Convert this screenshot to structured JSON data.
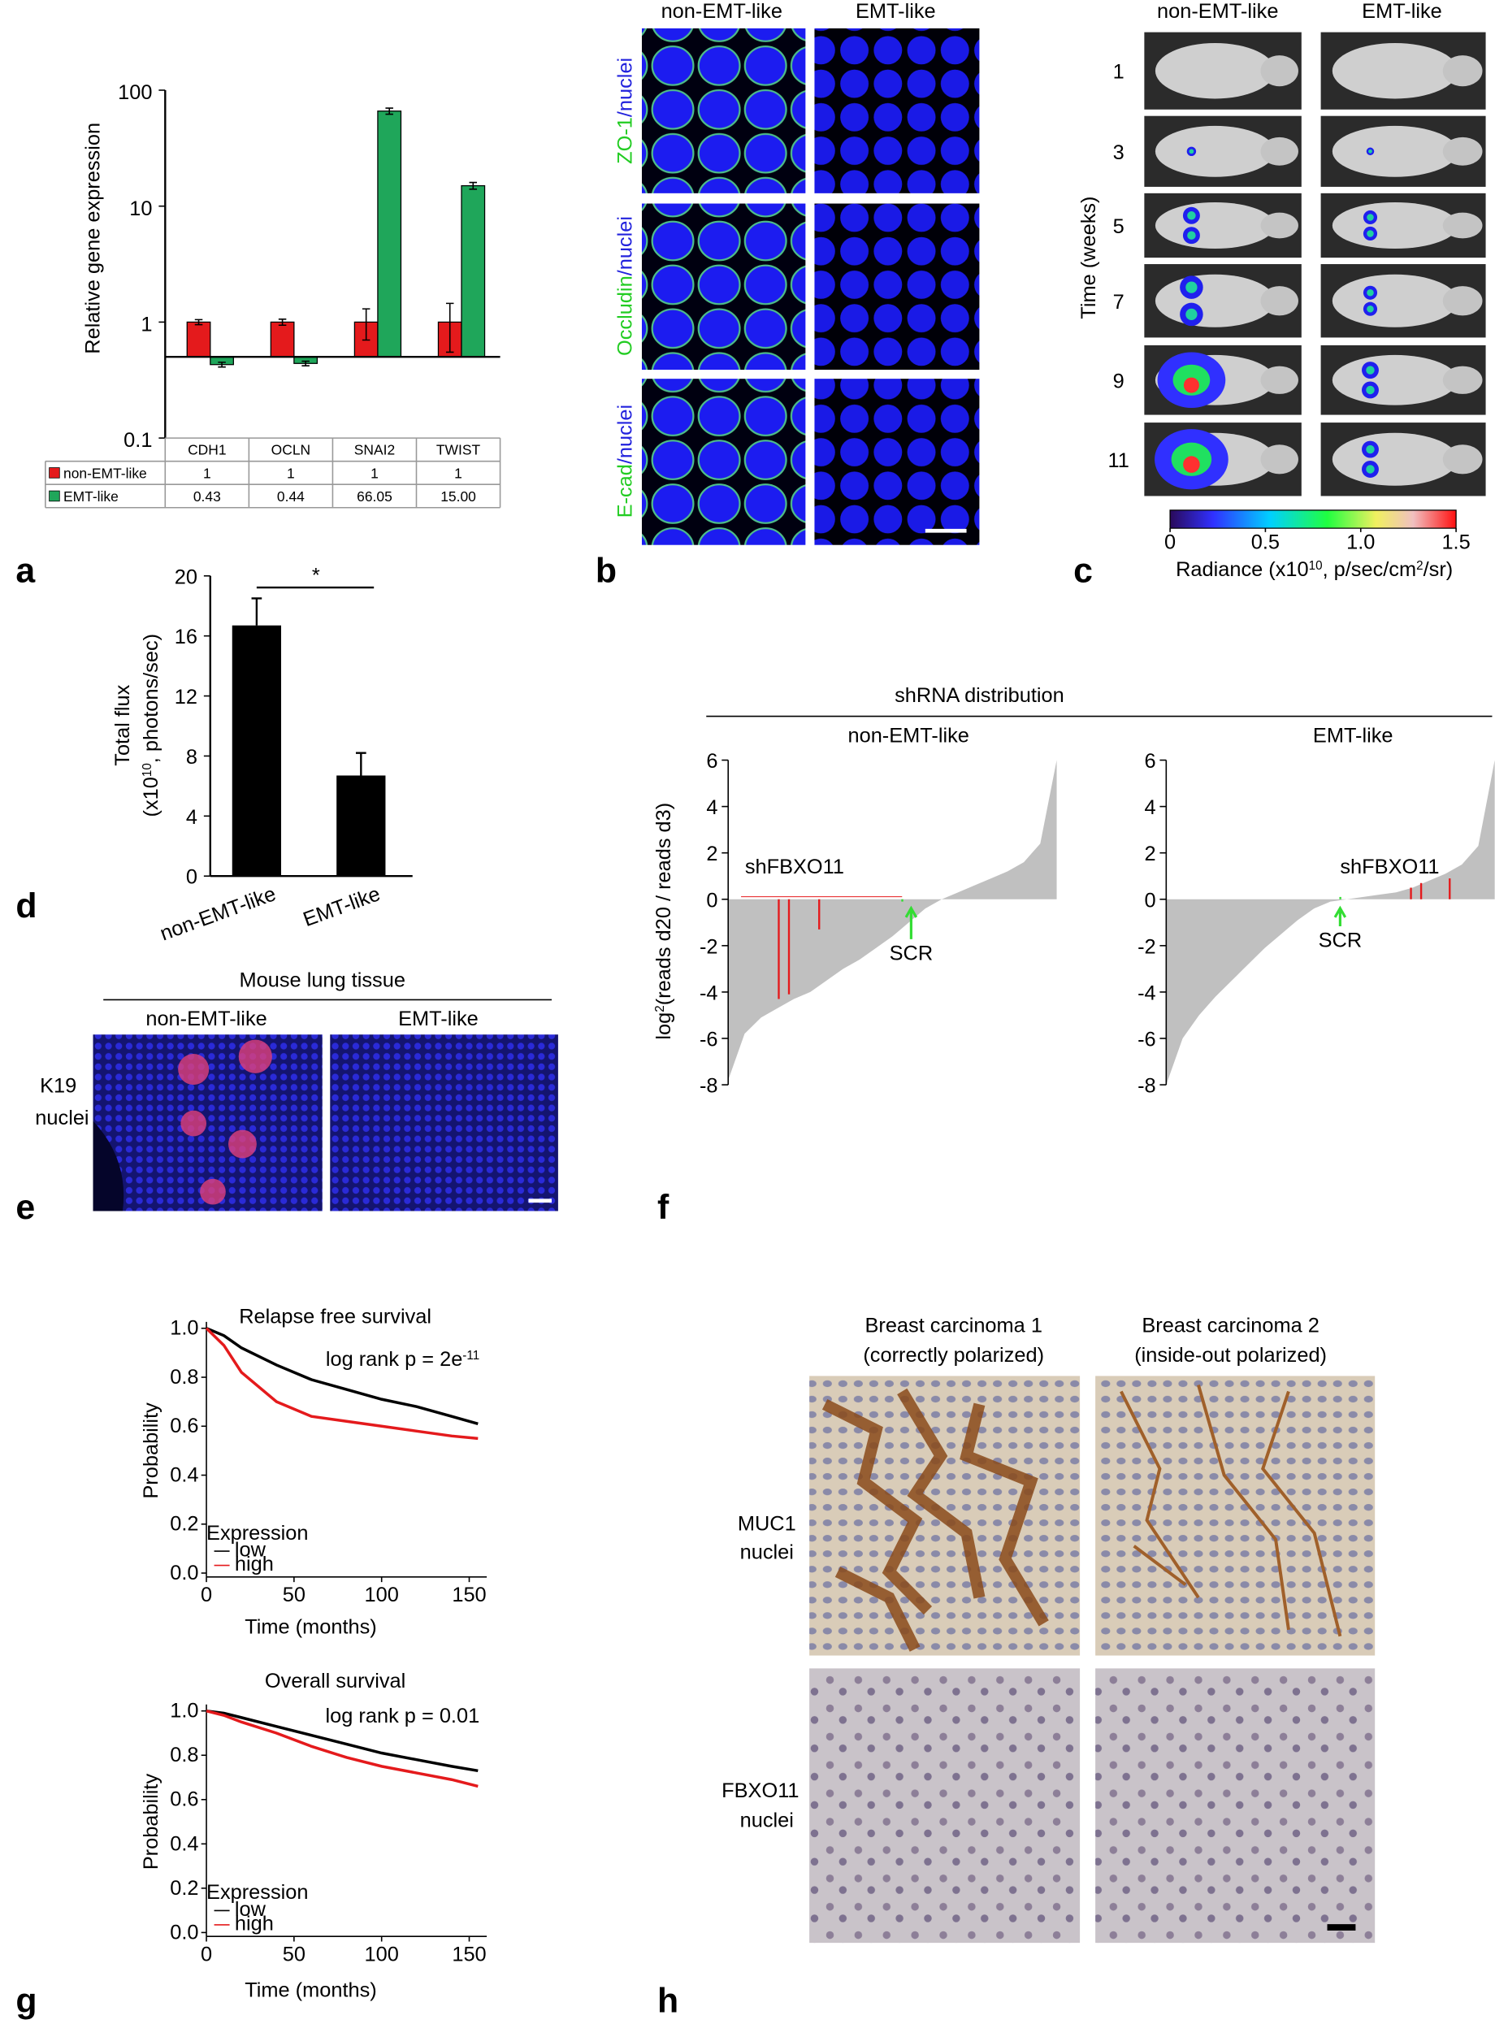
{
  "panel_letters": [
    "a",
    "b",
    "c",
    "d",
    "e",
    "f",
    "g",
    "h"
  ],
  "panel_b": {
    "columns": [
      "non-EMT-like",
      "EMT-like"
    ],
    "rows": [
      [
        "ZO-1",
        "/",
        "nuclei"
      ],
      [
        "Occludin",
        "/",
        "nuclei"
      ],
      [
        "E-cad",
        "/",
        "nuclei"
      ]
    ]
  },
  "panel_c": {
    "columns": [
      "non-EMT-like",
      "EMT-like"
    ],
    "weeks": [
      "1",
      "3",
      "5",
      "7",
      "9",
      "11"
    ],
    "axis_label": "Time (weeks)"
  },
  "panel_e": {
    "title": "Mouse lung tissue",
    "columns": [
      "non-EMT-like",
      "EMT-like"
    ],
    "stain": [
      "K19",
      "nuclei"
    ]
  },
  "panel_h": {
    "columns": [
      [
        "Breast carcinoma 1",
        "(correctly polarized)"
      ],
      [
        "Breast carcinoma 2",
        "(inside-out polarized)"
      ]
    ],
    "rows": [
      [
        "MUC1",
        "nuclei"
      ],
      [
        "FBXO11",
        "nuclei"
      ]
    ]
  },
  "chart_data": [
    {
      "type": "bar",
      "ylabel": "Relative gene expression",
      "log_scale": true,
      "ylim": [
        0.1,
        100
      ],
      "yticks": [
        0.1,
        1,
        10,
        100
      ],
      "categories": [
        "CDH1",
        "OCLN",
        "SNAI2",
        "TWIST"
      ],
      "series": [
        {
          "name": "non-EMT-like",
          "color": "#e41a1c",
          "values": [
            1,
            1,
            1,
            1
          ],
          "value_labels": [
            "1",
            "1",
            "1",
            "1"
          ],
          "errors": [
            0.05,
            0.06,
            0.3,
            0.45
          ]
        },
        {
          "name": "EMT-like",
          "color": "#1fa65a",
          "values": [
            0.43,
            0.44,
            66.05,
            15.0
          ],
          "value_labels": [
            "0.43",
            "0.44",
            "66.05",
            "15.00"
          ],
          "errors": [
            0.02,
            0.02,
            4,
            1
          ]
        }
      ]
    },
    {
      "type": "colorbar",
      "xlim": [
        0,
        1.5
      ],
      "xticks": [
        0,
        0.5,
        {
          "value": 1,
          "label": "1.0"
        },
        1.5
      ],
      "label": [
        "Radiance (x10",
        "10",
        ", p/sec/cm",
        "2",
        "/sr)"
      ]
    },
    {
      "type": "bar",
      "ylabel": {
        "line1": "Total flux",
        "line2": [
          "(x10",
          "10",
          ", photons/sec)"
        ]
      },
      "categories": [
        "non-EMT-like",
        "EMT-like"
      ],
      "values": [
        16.7,
        6.7
      ],
      "errors": [
        1.8,
        1.5
      ],
      "color": "#000000",
      "ylim": [
        0,
        20
      ],
      "yticks": [
        0,
        4,
        8,
        12,
        16,
        20
      ],
      "annotation": "*"
    },
    {
      "type": "area",
      "title": "shRNA distribution",
      "ylabel": [
        "log",
        "2",
        "(reads d20 / reads d3)"
      ],
      "ylim": [
        -8,
        6
      ],
      "yticks": [
        -8,
        -6,
        -4,
        -2,
        0,
        2,
        4,
        6
      ],
      "xlim": [
        0,
        100
      ],
      "panels": [
        {
          "title": "non-EMT-like",
          "color": "#c0c0c0",
          "x": [
            0,
            5,
            10,
            15,
            20,
            25,
            30,
            35,
            40,
            45,
            50,
            55,
            60,
            65,
            70,
            75,
            80,
            85,
            90,
            95,
            100
          ],
          "values": [
            -7.8,
            -5.8,
            -5.1,
            -4.7,
            -4.3,
            -4.0,
            -3.5,
            -3.0,
            -2.6,
            -2.1,
            -1.6,
            -1.0,
            -0.4,
            0.0,
            0.3,
            0.6,
            0.9,
            1.2,
            1.6,
            2.4,
            6.0
          ],
          "highlights": [
            {
              "name": "shFBXO11",
              "color": "#e41a1c",
              "x": [
                15.4,
                18.5,
                27.7
              ],
              "values": [
                -4.3,
                -4.1,
                -1.3
              ]
            },
            {
              "name": "SCR",
              "color": "#33dd33",
              "x": [
                53
              ],
              "values": [
                -0.1
              ]
            }
          ]
        },
        {
          "title": "EMT-like",
          "color": "#c0c0c0",
          "x": [
            0,
            5,
            10,
            15,
            20,
            25,
            30,
            35,
            40,
            45,
            50,
            55,
            60,
            65,
            70,
            75,
            80,
            85,
            90,
            95,
            100
          ],
          "values": [
            -8.0,
            -6.0,
            -5.0,
            -4.2,
            -3.5,
            -2.8,
            -2.1,
            -1.5,
            -0.9,
            -0.4,
            -0.1,
            0.0,
            0.1,
            0.2,
            0.3,
            0.5,
            0.8,
            1.1,
            1.5,
            2.3,
            6.0
          ],
          "highlights": [
            {
              "name": "shFBXO11",
              "color": "#e41a1c",
              "x": [
                74.5,
                77.6,
                86.3
              ],
              "values": [
                0.5,
                0.7,
                0.9
              ]
            },
            {
              "name": "SCR",
              "color": "#33dd33",
              "x": [
                53
              ],
              "values": [
                0.1
              ]
            }
          ]
        }
      ]
    },
    {
      "type": "line",
      "title": "Relapse free survival",
      "annotation": [
        "log rank p = 2e",
        "-11"
      ],
      "xlabel": "Time (months)",
      "ylabel": "Probability",
      "xlim": [
        0,
        160
      ],
      "xticks": [
        0,
        50,
        100,
        150
      ],
      "ylim": [
        0,
        1
      ],
      "yticks": [
        {
          "value": 0,
          "label": "0.0"
        },
        {
          "value": 0.2,
          "label": "0.2"
        },
        {
          "value": 0.4,
          "label": "0.4"
        },
        {
          "value": 0.6,
          "label": "0.6"
        },
        {
          "value": 0.8,
          "label": "0.8"
        },
        {
          "value": 1,
          "label": "1.0"
        }
      ],
      "legend_title": "Expression",
      "series": [
        {
          "name": "low",
          "color": "#000000",
          "x": [
            0,
            10,
            20,
            40,
            60,
            80,
            100,
            120,
            140,
            155
          ],
          "values": [
            1,
            0.97,
            0.92,
            0.85,
            0.79,
            0.75,
            0.71,
            0.68,
            0.64,
            0.61
          ]
        },
        {
          "name": "high",
          "color": "#e41a1c",
          "x": [
            0,
            10,
            20,
            40,
            60,
            80,
            100,
            120,
            140,
            155
          ],
          "values": [
            1,
            0.93,
            0.82,
            0.7,
            0.64,
            0.62,
            0.6,
            0.58,
            0.56,
            0.55
          ]
        }
      ]
    },
    {
      "type": "line",
      "title": "Overall survival",
      "annotation": [
        "log rank p = 0.01"
      ],
      "xlabel": "Time (months)",
      "ylabel": "Probability",
      "xlim": [
        0,
        160
      ],
      "xticks": [
        0,
        50,
        100,
        150
      ],
      "ylim": [
        0,
        1
      ],
      "yticks": [
        {
          "value": 0,
          "label": "0.0"
        },
        {
          "value": 0.2,
          "label": "0.2"
        },
        {
          "value": 0.4,
          "label": "0.4"
        },
        {
          "value": 0.6,
          "label": "0.6"
        },
        {
          "value": 0.8,
          "label": "0.8"
        },
        {
          "value": 1,
          "label": "1.0"
        }
      ],
      "legend_title": "Expression",
      "series": [
        {
          "name": "low",
          "color": "#000000",
          "x": [
            0,
            10,
            20,
            40,
            60,
            80,
            100,
            120,
            140,
            155
          ],
          "values": [
            1,
            0.99,
            0.97,
            0.93,
            0.89,
            0.85,
            0.81,
            0.78,
            0.75,
            0.73
          ]
        },
        {
          "name": "high",
          "color": "#e41a1c",
          "x": [
            0,
            10,
            20,
            40,
            60,
            80,
            100,
            120,
            140,
            155
          ],
          "values": [
            1,
            0.98,
            0.95,
            0.9,
            0.84,
            0.79,
            0.75,
            0.72,
            0.69,
            0.66
          ]
        }
      ]
    }
  ]
}
